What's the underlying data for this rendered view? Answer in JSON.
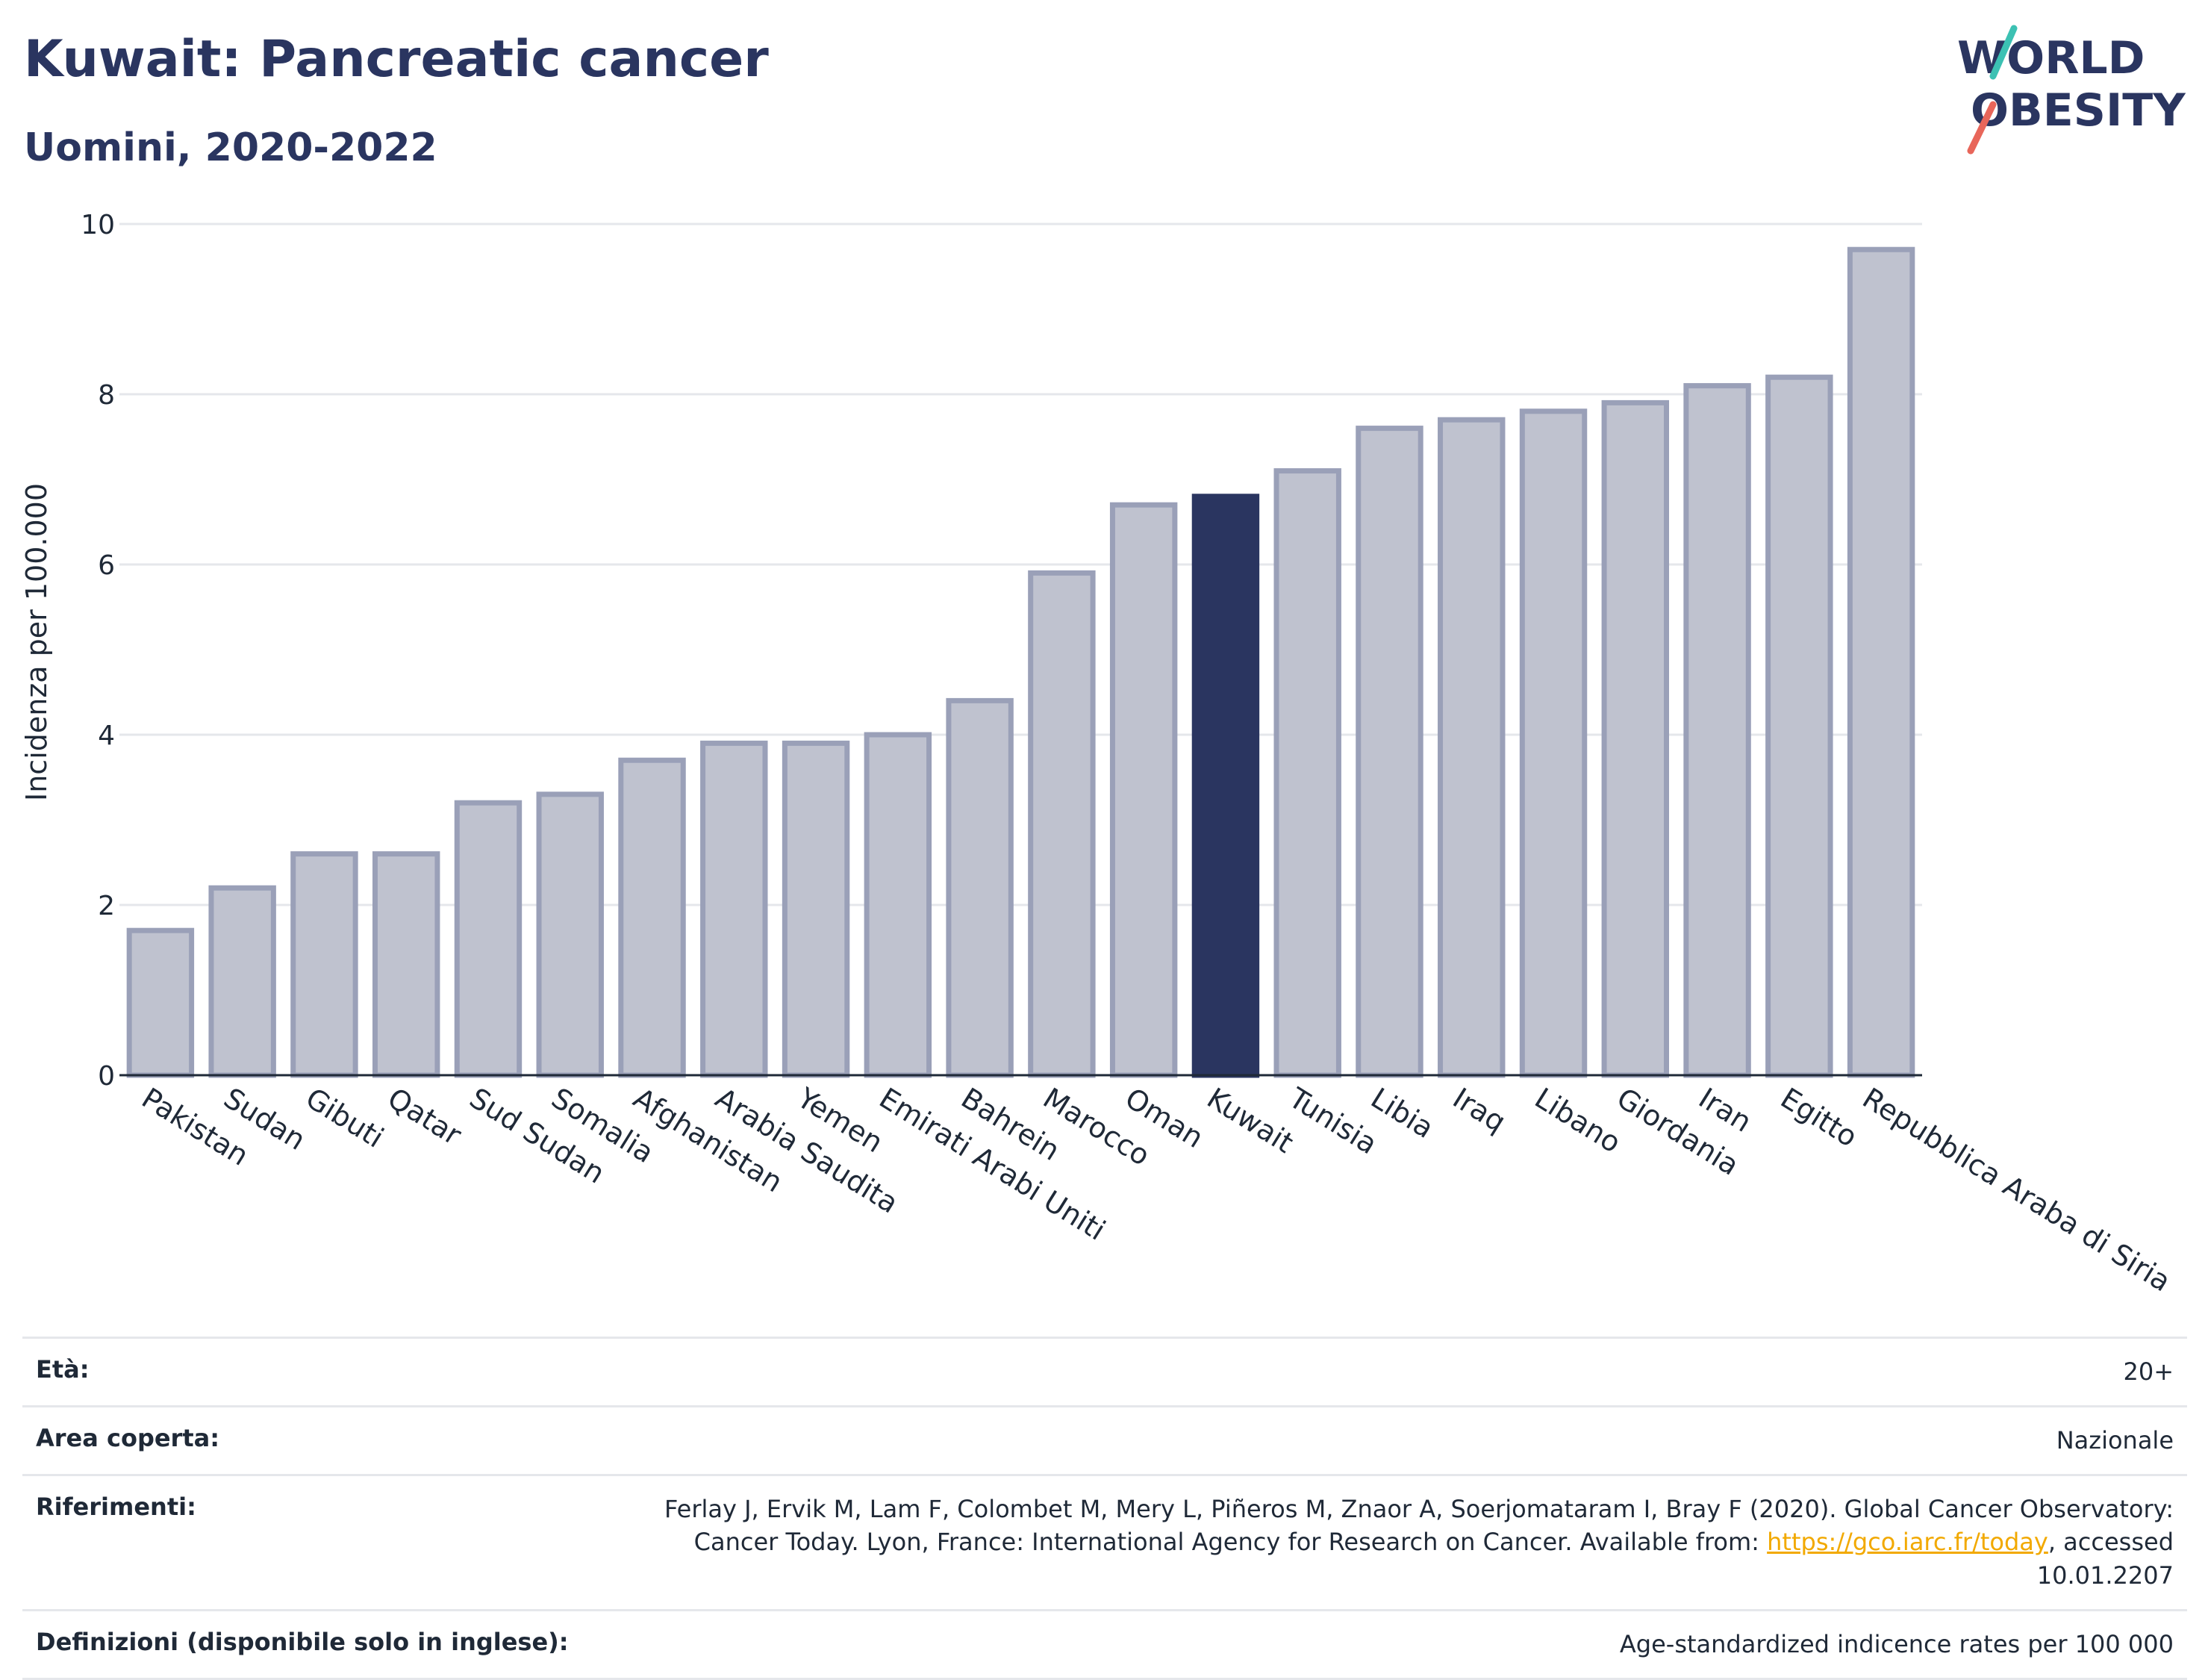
{
  "header": {
    "title": "Kuwait: Pancreatic cancer",
    "subtitle": "Uomini, 2020-2022"
  },
  "logo": {
    "line1": "WORLD",
    "line2": "OBESITY"
  },
  "chart_data": {
    "type": "bar",
    "title": "Kuwait: Pancreatic cancer",
    "subtitle": "Uomini, 2020-2022",
    "ylabel": "Incidenza per 100.000",
    "xlabel": "",
    "ylim": [
      0,
      10
    ],
    "yticks": [
      0,
      2,
      4,
      6,
      8,
      10
    ],
    "grid": true,
    "highlight": "Kuwait",
    "colors": {
      "bar": "#bfc2cf",
      "bar_edge": "#9aa0b8",
      "highlight": "#2a3560"
    },
    "categories": [
      "Pakistan",
      "Sudan",
      "Gibuti",
      "Qatar",
      "Sud Sudan",
      "Somalia",
      "Afghanistan",
      "Arabia Saudita",
      "Yemen",
      "Emirati Arabi Uniti",
      "Bahrein",
      "Marocco",
      "Oman",
      "Kuwait",
      "Tunisia",
      "Libia",
      "Iraq",
      "Libano",
      "Giordania",
      "Iran",
      "Egitto",
      "Repubblica Araba di Siria"
    ],
    "values": [
      1.7,
      2.2,
      2.6,
      2.6,
      3.2,
      3.3,
      3.7,
      3.9,
      3.9,
      4.0,
      4.4,
      5.9,
      6.7,
      6.8,
      7.1,
      7.6,
      7.7,
      7.8,
      7.9,
      8.1,
      8.2,
      9.7
    ]
  },
  "info": {
    "age": {
      "label": "Età:",
      "value": "20+"
    },
    "area": {
      "label": "Area coperta:",
      "value": "Nazionale"
    },
    "references": {
      "label": "Riferimenti:",
      "text1": "Ferlay J, Ervik M, Lam F, Colombet M, Mery L, Piñeros M, Znaor A, Soerjomataram I, Bray F (2020). Global Cancer Observatory: Cancer Today. Lyon, France: International Agency for Research on Cancer. Available from: ",
      "link": "https://gco.iarc.fr/today",
      "text2": ", accessed 10.01.2207"
    },
    "definitions": {
      "label": "Definizioni (disponibile solo in inglese):",
      "value": "Age-standardized indicence rates per 100 000"
    }
  }
}
